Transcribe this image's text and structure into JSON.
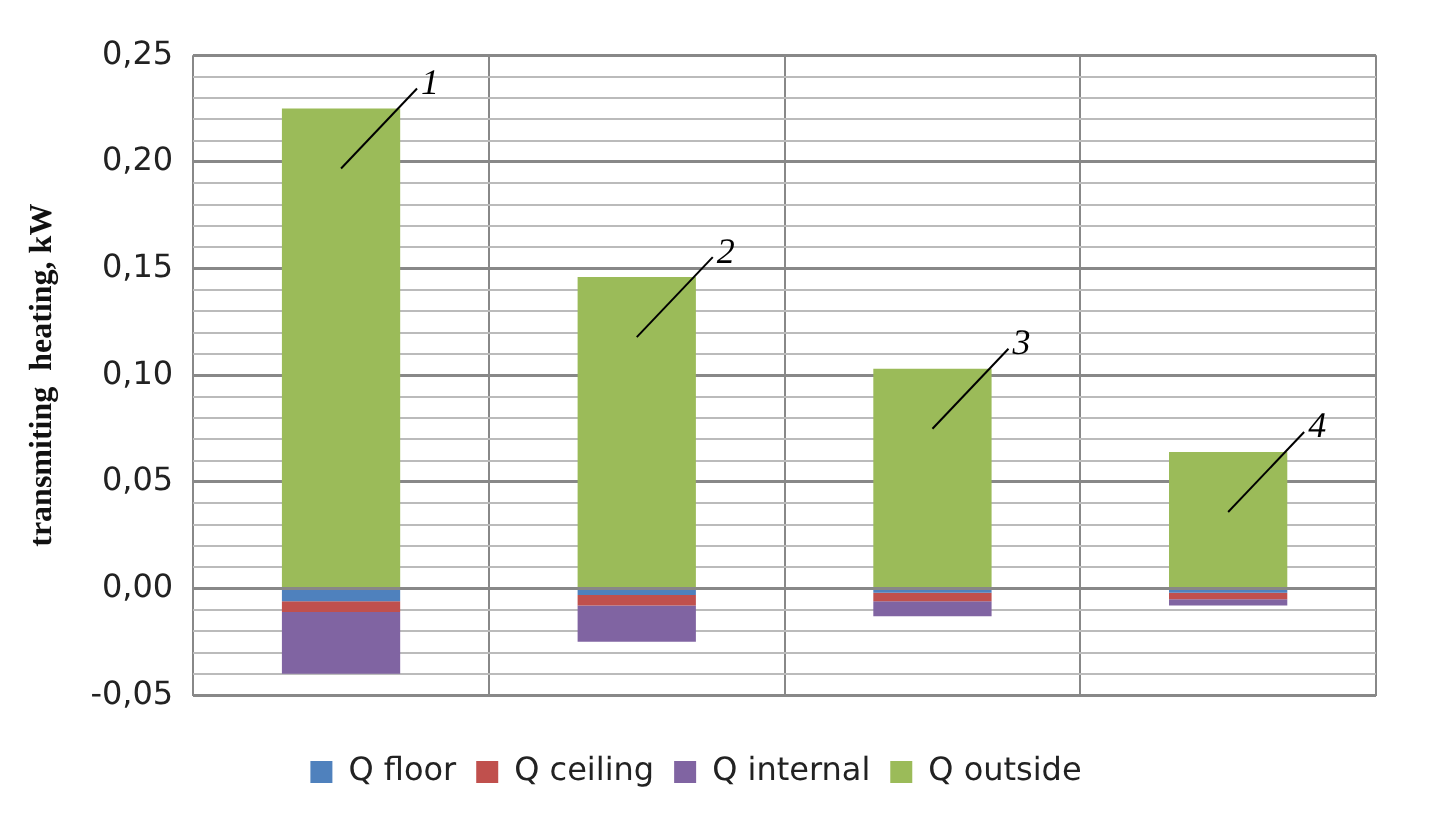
{
  "chart_data": {
    "type": "bar",
    "stacked": true,
    "ylabel": "transmiting  heating, kW",
    "categories": [
      null,
      null,
      null,
      null
    ],
    "series": [
      {
        "name": "Q floor",
        "color": "#4f81bd",
        "values": [
          -0.006,
          -0.003,
          -0.002,
          -0.002
        ]
      },
      {
        "name": "Q ceiling",
        "color": "#c0504d",
        "values": [
          -0.005,
          -0.005,
          -0.004,
          -0.003
        ]
      },
      {
        "name": "Q internal",
        "color": "#8064a2",
        "values": [
          -0.029,
          -0.017,
          -0.007,
          -0.003
        ]
      },
      {
        "name": "Q outside",
        "color": "#9bbb59",
        "values": [
          0.225,
          0.146,
          0.103,
          0.064
        ]
      }
    ],
    "ylim": [
      -0.05,
      0.25
    ],
    "yticks": [
      {
        "value": -0.05,
        "label": "-0,05"
      },
      {
        "value": -0.04,
        "label": null
      },
      {
        "value": -0.03,
        "label": null
      },
      {
        "value": -0.02,
        "label": null
      },
      {
        "value": -0.01,
        "label": null
      },
      {
        "value": 0,
        "label": "0,00"
      },
      {
        "value": 0.01,
        "label": null
      },
      {
        "value": 0.02,
        "label": null
      },
      {
        "value": 0.03,
        "label": null
      },
      {
        "value": 0.04,
        "label": null
      },
      {
        "value": 0.05,
        "label": "0,05"
      },
      {
        "value": 0.06,
        "label": null
      },
      {
        "value": 0.07,
        "label": null
      },
      {
        "value": 0.08,
        "label": null
      },
      {
        "value": 0.09,
        "label": null
      },
      {
        "value": 0.1,
        "label": "0,10"
      },
      {
        "value": 0.11,
        "label": null
      },
      {
        "value": 0.12,
        "label": null
      },
      {
        "value": 0.13,
        "label": null
      },
      {
        "value": 0.14,
        "label": null
      },
      {
        "value": 0.15,
        "label": "0,15"
      },
      {
        "value": 0.16,
        "label": null
      },
      {
        "value": 0.17,
        "label": null
      },
      {
        "value": 0.18,
        "label": null
      },
      {
        "value": 0.19,
        "label": null
      },
      {
        "value": 0.2,
        "label": "0,20"
      },
      {
        "value": 0.21,
        "label": null
      },
      {
        "value": 0.22,
        "label": null
      },
      {
        "value": 0.23,
        "label": null
      },
      {
        "value": 0.24,
        "label": null
      },
      {
        "value": 0.25,
        "label": "0,25"
      }
    ],
    "annotations": [
      "1",
      "2",
      "3",
      "4"
    ],
    "grid": true,
    "legend": "bottom"
  }
}
